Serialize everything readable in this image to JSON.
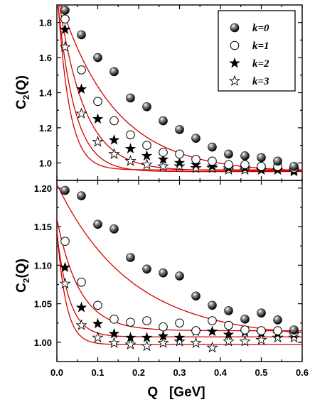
{
  "chart_data": [
    {
      "type": "scatter",
      "panel": "top",
      "ylabel": "C",
      "ylabel_sub": "2",
      "ylabel_suffix": "(Q)",
      "xlim": [
        0.0,
        0.6
      ],
      "ylim": [
        0.9,
        1.9
      ],
      "yticks": [
        1.0,
        1.2,
        1.4,
        1.6,
        1.8
      ],
      "ytick_labels": [
        "1.0",
        "1.2",
        "1.4",
        "1.6",
        "1.8"
      ],
      "grid": false,
      "legend_position": "top-right",
      "x": [
        0.02,
        0.06,
        0.1,
        0.14,
        0.18,
        0.22,
        0.26,
        0.3,
        0.34,
        0.38,
        0.42,
        0.46,
        0.5,
        0.54,
        0.58
      ],
      "series": [
        {
          "name": "k=0",
          "marker": "ball",
          "values": [
            1.87,
            1.73,
            1.6,
            1.52,
            1.37,
            1.32,
            1.24,
            1.19,
            1.14,
            1.09,
            1.05,
            1.04,
            1.03,
            1.01,
            0.98
          ],
          "fit": {
            "a": 0.944,
            "b": 1.03,
            "c": 7.4
          }
        },
        {
          "name": "k=1",
          "marker": "open-circle",
          "values": [
            1.82,
            1.53,
            1.35,
            1.24,
            1.16,
            1.1,
            1.06,
            1.05,
            1.02,
            1.01,
            0.99,
            0.99,
            0.98,
            0.98,
            0.97
          ],
          "fit": {
            "a": 0.955,
            "b": 1.05,
            "c": 16.0
          }
        },
        {
          "name": "k=2",
          "marker": "filled-star",
          "values": [
            1.76,
            1.42,
            1.25,
            1.13,
            1.08,
            1.04,
            1.02,
            1.0,
            0.99,
            0.98,
            0.97,
            0.97,
            0.96,
            0.96,
            0.95
          ],
          "fit": {
            "a": 0.95,
            "b": 1.02,
            "c": 24.0
          }
        },
        {
          "name": "k=3",
          "marker": "open-star",
          "values": [
            1.66,
            1.28,
            1.12,
            1.05,
            1.01,
            0.99,
            0.98,
            0.98,
            0.97,
            0.97,
            0.96,
            0.96,
            0.96,
            0.96,
            0.96
          ],
          "fit": {
            "a": 0.96,
            "b": 1.05,
            "c": 35.0
          }
        }
      ]
    },
    {
      "type": "scatter",
      "panel": "bottom",
      "ylabel": "C",
      "ylabel_sub": "2",
      "ylabel_suffix": "(Q)",
      "xlabel": "Q   [GeV]",
      "xlim": [
        0.0,
        0.6
      ],
      "ylim": [
        0.975,
        1.21
      ],
      "xticks": [
        0.0,
        0.1,
        0.2,
        0.3,
        0.4,
        0.5,
        0.6
      ],
      "xtick_labels": [
        "0.0",
        "0.1",
        "0.2",
        "0.3",
        "0.4",
        "0.5",
        "0.6"
      ],
      "yticks": [
        1.0,
        1.05,
        1.1,
        1.15,
        1.2
      ],
      "ytick_labels": [
        "1.00",
        "1.05",
        "1.10",
        "1.15",
        "1.20"
      ],
      "grid": false,
      "x": [
        0.02,
        0.06,
        0.1,
        0.14,
        0.18,
        0.22,
        0.26,
        0.3,
        0.34,
        0.38,
        0.42,
        0.46,
        0.5,
        0.54,
        0.58
      ],
      "series": [
        {
          "name": "k=0",
          "marker": "ball",
          "values": [
            1.197,
            1.19,
            1.153,
            1.147,
            1.11,
            1.095,
            1.09,
            1.086,
            1.06,
            1.048,
            1.041,
            1.03,
            1.038,
            1.029,
            1.016
          ],
          "fit": {
            "a": 1.005,
            "b": 0.2,
            "c": 5.5
          }
        },
        {
          "name": "k=1",
          "marker": "open-circle",
          "values": [
            1.131,
            1.078,
            1.048,
            1.03,
            1.026,
            1.028,
            1.02,
            1.025,
            1.015,
            1.028,
            1.022,
            1.016,
            1.015,
            1.015,
            1.013
          ],
          "fit": {
            "a": 1.015,
            "b": 0.145,
            "c": 18.0
          }
        },
        {
          "name": "k=2",
          "marker": "filled-star",
          "values": [
            1.097,
            1.045,
            1.024,
            1.011,
            1.006,
            1.006,
            1.008,
            1.006,
            1.014,
            1.014,
            1.01,
            1.013,
            1.012,
            1.011,
            1.01
          ],
          "fit": {
            "a": 1.007,
            "b": 0.135,
            "c": 33.0
          }
        },
        {
          "name": "k=3",
          "marker": "open-star",
          "values": [
            1.076,
            1.022,
            1.006,
            0.999,
            0.997,
            0.995,
            0.999,
            1.001,
            0.999,
            0.993,
            1.001,
            1.001,
            1.003,
            1.006,
            1.006
          ],
          "fit": {
            "a": 0.997,
            "b": 0.15,
            "c": 45.0
          }
        }
      ]
    }
  ]
}
